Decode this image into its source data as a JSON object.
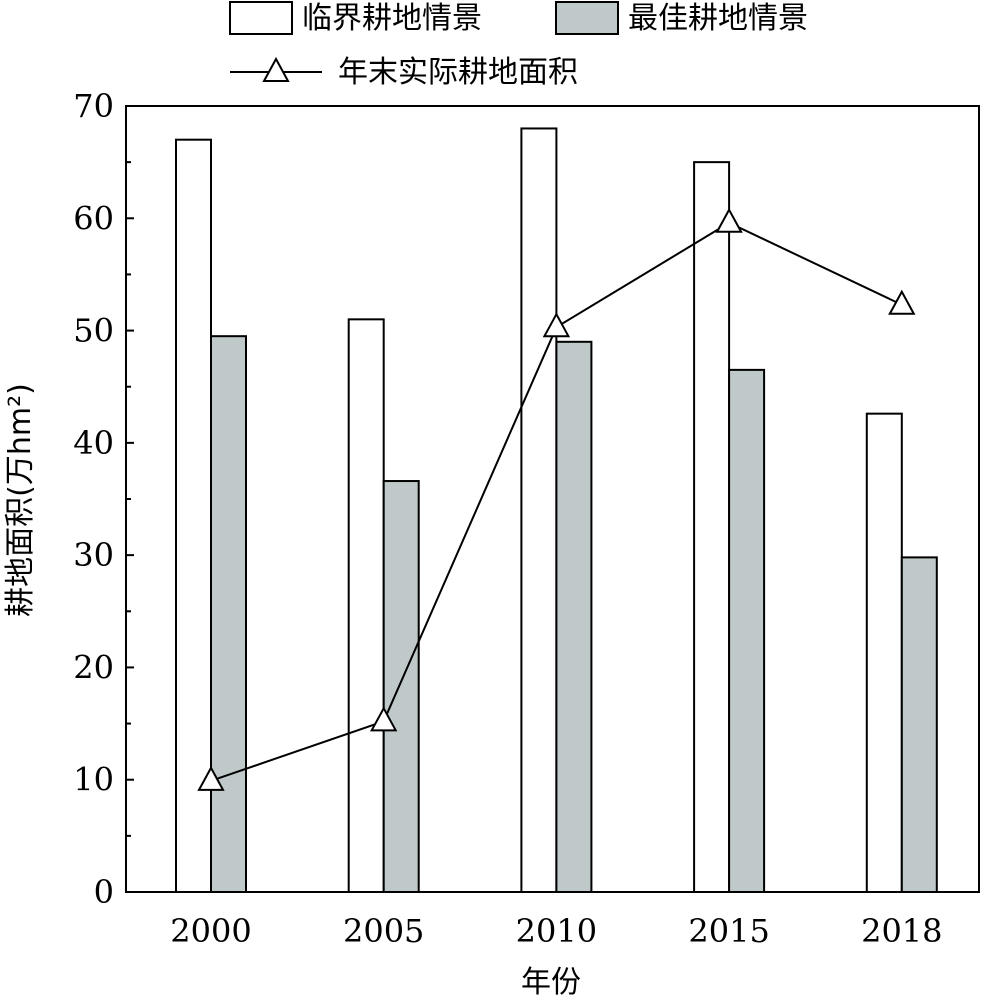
{
  "chart_data": {
    "type": "bar",
    "xlabel": "年份",
    "ylabel": "耕地面积(万hm²)",
    "ylim": [
      0,
      70
    ],
    "yticks": [
      0,
      10,
      20,
      30,
      40,
      50,
      60,
      70
    ],
    "categories": [
      "2000",
      "2005",
      "2010",
      "2015",
      "2018"
    ],
    "series": [
      {
        "name": "临界耕地情景",
        "kind": "bar",
        "color": "#ffffff",
        "values": [
          67,
          51,
          68,
          65,
          42.6
        ]
      },
      {
        "name": "最佳耕地情景",
        "kind": "bar",
        "color": "#bfc9c9",
        "values": [
          49.5,
          36.6,
          49,
          46.5,
          29.8
        ]
      },
      {
        "name": "年末实际耕地面积",
        "kind": "line",
        "marker": "triangle-open",
        "color": "#000000",
        "values": [
          9.9,
          15.2,
          50.3,
          59.6,
          52.3
        ]
      }
    ],
    "legend_position": "top",
    "grid": false
  }
}
